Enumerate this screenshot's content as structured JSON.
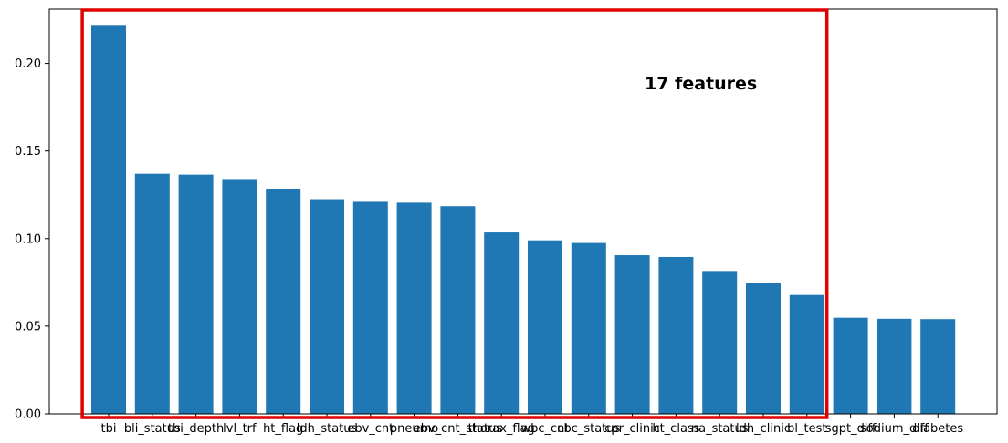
{
  "chart_data": {
    "type": "bar",
    "title": "",
    "xlabel": "",
    "ylabel": "",
    "ylim": [
      0,
      0.231
    ],
    "grid": false,
    "bar_color": "#1f77b4",
    "categories": [
      "tbi",
      "bli_status",
      "tbi_depth",
      "lvl_trf",
      "ht_flag",
      "ldh_status",
      "ebv_cnt",
      "pneumo",
      "ebv_cnt_status",
      "thorax_flag",
      "wbc_cnt",
      "cbc_status",
      "cpr_clinic",
      "ht_class",
      "na_status",
      "ldh_clinic",
      "bl_test",
      "sgpt_diff",
      "sodium_diff",
      "diabetes"
    ],
    "values": [
      0.222,
      0.137,
      0.1365,
      0.134,
      0.1285,
      0.1225,
      0.121,
      0.1205,
      0.1185,
      0.1035,
      0.099,
      0.0975,
      0.0905,
      0.0895,
      0.0815,
      0.0748,
      0.0678,
      0.0548,
      0.0542,
      0.054
    ],
    "yticks": [
      "0.00",
      "0.05",
      "0.10",
      "0.15",
      "0.20"
    ],
    "ytick_values": [
      0,
      0.05,
      0.1,
      0.15,
      0.2
    ],
    "annotation": {
      "text": "17 features",
      "highlighted_count": 17,
      "box_color": "#e00000"
    }
  }
}
